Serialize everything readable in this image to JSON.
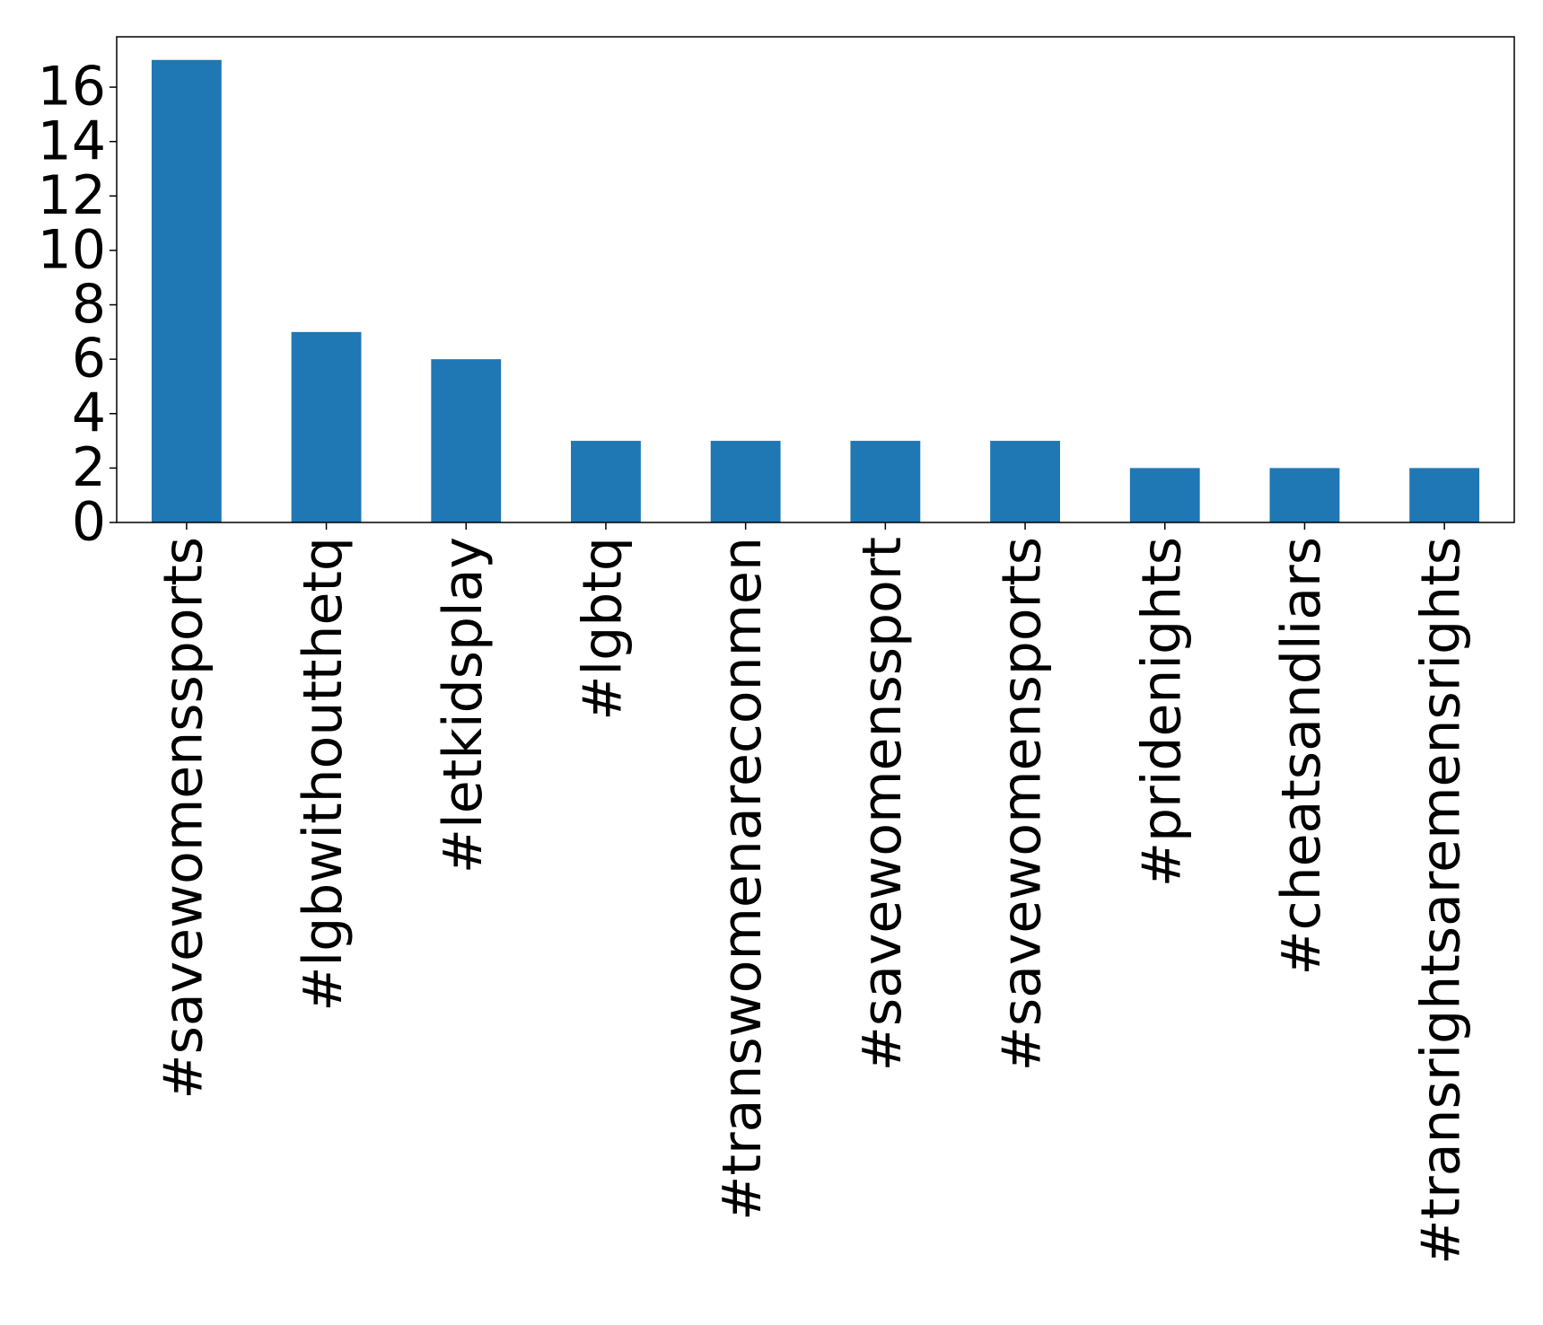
{
  "chart_data": {
    "type": "bar",
    "categories": [
      "#savewomenssports",
      "#lgbwithoutthetq",
      "#letkidsplay",
      "#lgbtq",
      "#transwomenareconmen",
      "#savewomenssport",
      "#savewomensports",
      "#pridenights",
      "#cheatsandliars",
      "#transrightsaremensrights"
    ],
    "values": [
      17,
      7,
      6,
      3,
      3,
      3,
      3,
      2,
      2,
      2
    ],
    "color": "#1f77b4",
    "ylim": [
      0,
      17.85
    ],
    "yticks": [
      0,
      2,
      4,
      6,
      8,
      10,
      12,
      14,
      16
    ],
    "grid": false
  }
}
